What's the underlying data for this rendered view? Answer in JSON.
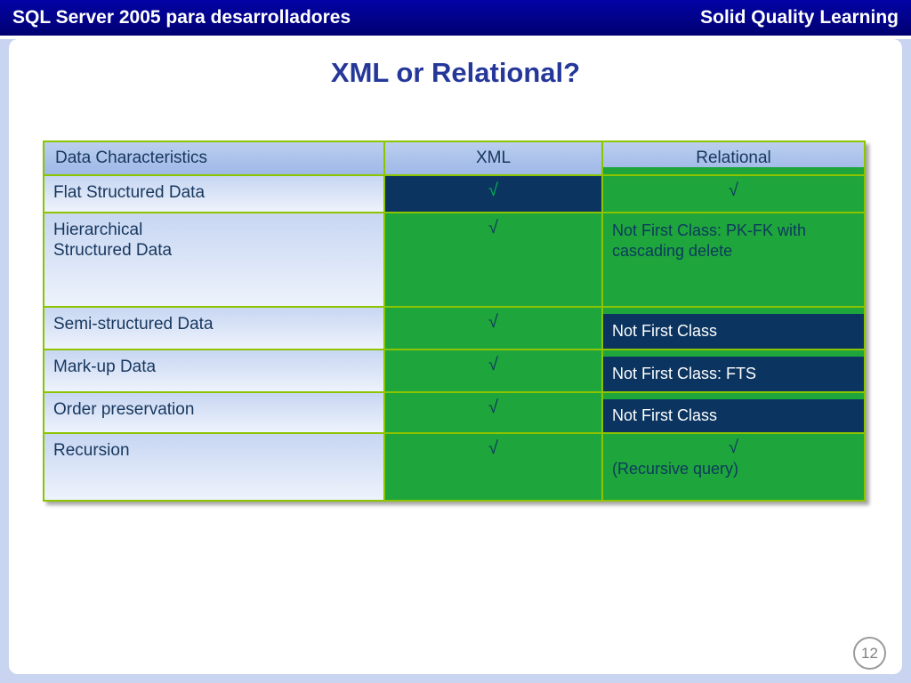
{
  "header_bar": {
    "left_title": "SQL Server 2005 para desarrolladores",
    "right_title": "Solid Quality Learning",
    "bg_color": "#000082",
    "text_color": "#FFFFFF"
  },
  "slide": {
    "title": "XML or Relational?",
    "title_color": "#25389A",
    "page_number": "12"
  },
  "table": {
    "check_symbol": "√",
    "columns": [
      {
        "label": "Data Characteristics"
      },
      {
        "label": "XML"
      },
      {
        "label": "Relational"
      }
    ],
    "rows": [
      {
        "label": "Flat Structured Data",
        "xml": "check",
        "relational": "check"
      },
      {
        "label": "Hierarchical\nStructured Data",
        "xml": "check",
        "relational_text": "Not First Class: PK-FK with cascading delete"
      },
      {
        "label": "Semi-structured Data",
        "xml": "check",
        "relational_text": "Not First Class"
      },
      {
        "label": "Mark-up Data",
        "xml": "check",
        "relational_text": "Not First Class: FTS"
      },
      {
        "label": "Order preservation",
        "xml": "check",
        "relational_text": "Not First Class"
      },
      {
        "label": "Recursion",
        "xml": "check",
        "relational": "check",
        "relational_text": "(Recursive query)"
      }
    ],
    "colors": {
      "border_green": "#8CC400",
      "cell_green": "#1EA53C",
      "cell_navy": "#0B3560",
      "header_bg": "#AEC6EC",
      "check_on_navy": "#00B050",
      "check_on_green": "#0E3A5E",
      "text_dark": "#17375E"
    }
  }
}
